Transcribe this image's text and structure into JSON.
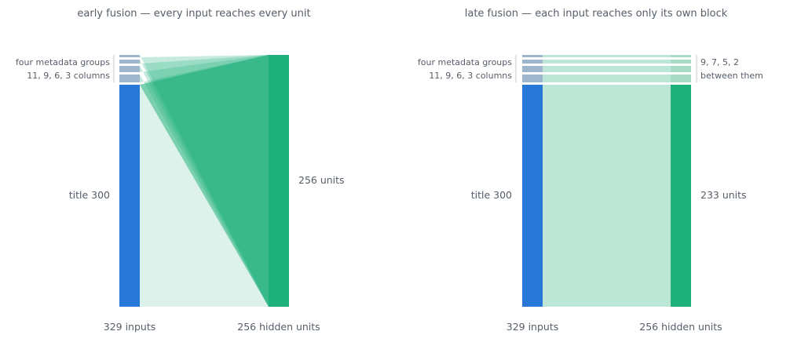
{
  "panels": [
    {
      "title": "early fusion — every input reaches every unit",
      "left_big_label": "title  300",
      "meta_label_1": "four metadata groups",
      "meta_label_2": "11, 9, 6, 3 columns",
      "right_big_label": "256 units",
      "bottom_left": "329 inputs",
      "bottom_right": "256 hidden units"
    },
    {
      "title": "late fusion — each input reaches only its own block",
      "left_big_label": "title  300",
      "meta_label_1": "four metadata groups",
      "meta_label_2": "11, 9, 6, 3 columns",
      "right_big_label": "233 units",
      "right_small_1": "9, 7, 5, 2",
      "right_small_2": "between them",
      "bottom_left": "329 inputs",
      "bottom_right": "256 hidden units"
    }
  ],
  "colors": {
    "input_bar": "#2878d8",
    "metadata_block": "#9fb6cc",
    "hidden_bar": "#1db07a",
    "fan_light": "#dcf2ea",
    "fan_dark": "#7bd0b0",
    "late_link": "#bce6d6",
    "text": "#555e69"
  }
}
